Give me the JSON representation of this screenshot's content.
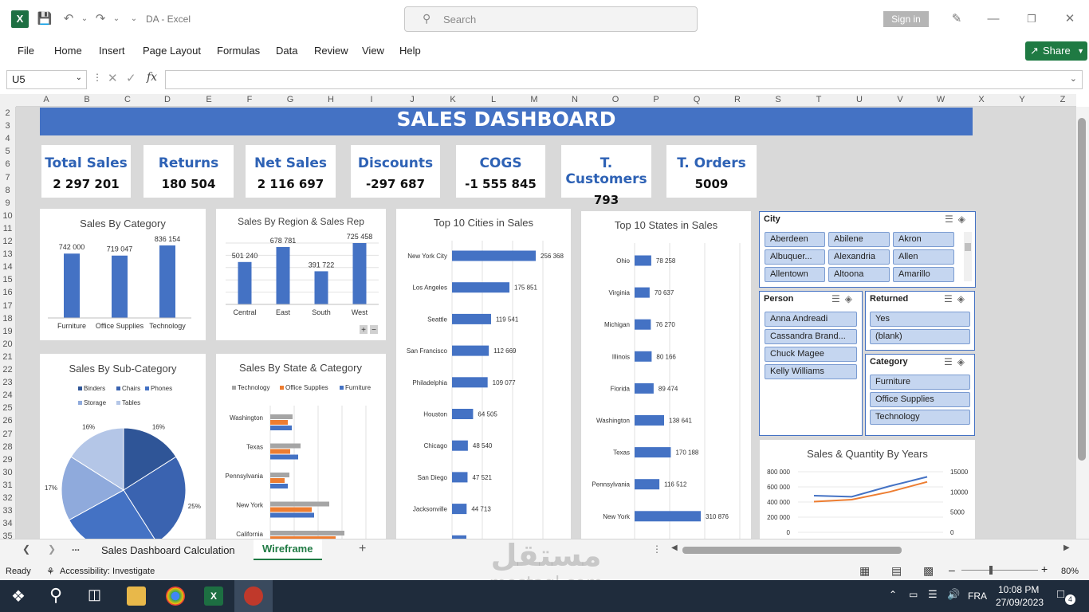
{
  "window": {
    "title": "DA  -  Excel",
    "search_placeholder": "Search",
    "sign_in": "Sign in"
  },
  "menu": {
    "items": [
      "File",
      "Home",
      "Insert",
      "Page Layout",
      "Formulas",
      "Data",
      "Review",
      "View",
      "Help"
    ],
    "share": "Share"
  },
  "formula_bar": {
    "name_box": "U5",
    "fx": "fx",
    "content": ""
  },
  "grid": {
    "columns": [
      "A",
      "B",
      "C",
      "D",
      "E",
      "F",
      "G",
      "H",
      "I",
      "J",
      "K",
      "L",
      "M",
      "N",
      "O",
      "P",
      "Q",
      "R",
      "S",
      "T",
      "U",
      "V",
      "W",
      "X",
      "Y",
      "Z"
    ],
    "rows": [
      "2",
      "3",
      "4",
      "5",
      "6",
      "7",
      "8",
      "9",
      "10",
      "11",
      "12",
      "13",
      "14",
      "15",
      "16",
      "17",
      "18",
      "19",
      "20",
      "21",
      "22",
      "23",
      "24",
      "25",
      "26",
      "27",
      "28",
      "29",
      "30",
      "31",
      "32",
      "33",
      "34",
      "35"
    ]
  },
  "dashboard": {
    "title": "SALES DASHBOARD",
    "kpis": [
      {
        "label": "Total Sales",
        "value": "2 297 201"
      },
      {
        "label": "Returns",
        "value": "180 504"
      },
      {
        "label": "Net Sales",
        "value": "2 116 697"
      },
      {
        "label": "Discounts",
        "value": "-297 687"
      },
      {
        "label": "COGS",
        "value": "-1 555 845"
      },
      {
        "label": "T. Customers",
        "value": "793"
      },
      {
        "label": "T. Orders",
        "value": "5009"
      }
    ]
  },
  "chart_data": [
    {
      "type": "bar",
      "title": "Sales By Category",
      "categories": [
        "Furniture",
        "Office Supplies",
        "Technology"
      ],
      "values": [
        742000,
        719047,
        836154
      ],
      "value_labels": [
        "742 000",
        "719 047",
        "836 154"
      ],
      "color": "#4472c4"
    },
    {
      "type": "bar",
      "title": "Sales By Region & Sales Rep",
      "categories": [
        "Central",
        "East",
        "South",
        "West"
      ],
      "values": [
        501240,
        678781,
        391722,
        725458
      ],
      "value_labels": [
        "501 240",
        "678 781",
        "391 722",
        "725 458"
      ],
      "grid": true,
      "color": "#4472c4",
      "controls": [
        "+",
        "−"
      ]
    },
    {
      "type": "bar",
      "orientation": "horizontal",
      "title": "Top 10 Cities in Sales",
      "categories": [
        "New York City",
        "Los Angeles",
        "Seattle",
        "San Francisco",
        "Philadelphia",
        "Houston",
        "Chicago",
        "San Diego",
        "Jacksonville"
      ],
      "values": [
        256368,
        175851,
        119541,
        112669,
        109077,
        64505,
        48540,
        47521,
        44713
      ],
      "value_labels": [
        "256 368",
        "175 851",
        "119 541",
        "112 669",
        "109 077",
        "64 505",
        "48 540",
        "47 521",
        "44 713"
      ],
      "grid": true,
      "color": "#4472c4"
    },
    {
      "type": "bar",
      "orientation": "horizontal",
      "title": "Top 10 States in Sales",
      "categories": [
        "Ohio",
        "Virginia",
        "Michigan",
        "Illinois",
        "Florida",
        "Washington",
        "Texas",
        "Pennsylvania",
        "New York"
      ],
      "values": [
        78258,
        70637,
        76270,
        80166,
        89474,
        138641,
        170188,
        116512,
        310876
      ],
      "value_labels": [
        "78 258",
        "70 637",
        "76 270",
        "80 166",
        "89 474",
        "138 641",
        "170 188",
        "116 512",
        "310 876"
      ],
      "grid": true,
      "color": "#4472c4"
    },
    {
      "type": "pie",
      "title": "Sales By Sub-Category",
      "series": [
        {
          "name": "Binders",
          "color": "#2f5597"
        },
        {
          "name": "Chairs",
          "color": "#3a63b0"
        },
        {
          "name": "Phones",
          "color": "#4472c4"
        },
        {
          "name": "Storage",
          "color": "#8faadc"
        },
        {
          "name": "Tables",
          "color": "#b4c6e7"
        }
      ],
      "values": [
        16,
        25,
        26,
        17,
        16
      ],
      "value_labels": [
        "16%",
        "25%",
        "",
        "17%",
        "16%"
      ],
      "legend_position": "top"
    },
    {
      "type": "bar",
      "orientation": "horizontal",
      "title": "Sales By State & Category",
      "categories": [
        "Washington",
        "Texas",
        "Pennsylvania",
        "New York",
        "California"
      ],
      "series": [
        {
          "name": "Technology",
          "color": "#a5a5a5",
          "values": [
            28,
            38,
            24,
            74,
            93
          ]
        },
        {
          "name": "Office Supplies",
          "color": "#ed7d31",
          "values": [
            22,
            25,
            18,
            52,
            82
          ]
        },
        {
          "name": "Furniture",
          "color": "#4472c4",
          "values": [
            27,
            35,
            22,
            55,
            60
          ]
        }
      ],
      "legend_position": "top",
      "grid": true
    },
    {
      "type": "line",
      "title": "Sales & Quantity By Years",
      "series": [
        {
          "name": "Sales",
          "color": "#4472c4",
          "values": [
            484000,
            470000,
            609000,
            733000
          ],
          "axis": "left"
        },
        {
          "name": "Quantity",
          "color": "#ed7d31",
          "values": [
            7600,
            8100,
            10000,
            12500
          ],
          "axis": "right"
        }
      ],
      "y_left_ticks": [
        "800 000",
        "600 000",
        "400 000",
        "200 000",
        "0"
      ],
      "y_right_ticks": [
        "15000",
        "10000",
        "5000",
        "0"
      ],
      "ylim_left": [
        0,
        800000
      ],
      "ylim_right": [
        0,
        15000
      ],
      "grid": true
    }
  ],
  "slicers": {
    "city": {
      "title": "City",
      "items": [
        "Aberdeen",
        "Abilene",
        "Akron",
        "Albuquer...",
        "Alexandria",
        "Allen",
        "Allentown",
        "Altoona",
        "Amarillo"
      ]
    },
    "person": {
      "title": "Person",
      "items": [
        "Anna Andreadi",
        "Cassandra Brand...",
        "Chuck Magee",
        "Kelly Williams"
      ]
    },
    "returned": {
      "title": "Returned",
      "items": [
        "Yes",
        "(blank)"
      ]
    },
    "category": {
      "title": "Category",
      "items": [
        "Furniture",
        "Office Supplies",
        "Technology"
      ]
    }
  },
  "sheet_tabs": {
    "tabs": [
      "Sales Dashboard Calculation",
      "Wireframe"
    ],
    "active": "Wireframe",
    "more": "..."
  },
  "status": {
    "ready": "Ready",
    "accessibility": "Accessibility: Investigate",
    "zoom": "80%"
  },
  "taskbar": {
    "language": "FRA",
    "time": "10:08 PM",
    "date": "27/09/2023",
    "notifications": "4"
  },
  "watermark": {
    "arabic": "مستقل",
    "latin": "mostaql.com"
  }
}
